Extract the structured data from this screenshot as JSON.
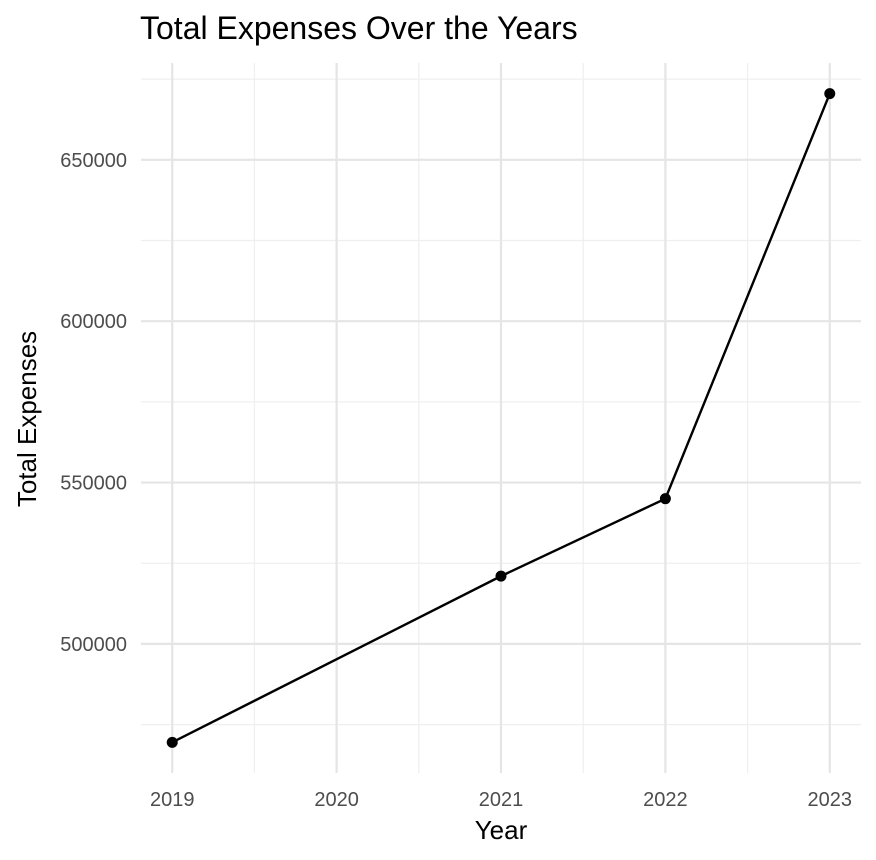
{
  "chart_data": {
    "type": "line",
    "title": "Total Expenses Over the Years",
    "xlabel": "Year",
    "ylabel": "Total Expenses",
    "x": [
      2019,
      2021,
      2022,
      2023
    ],
    "y": [
      469500,
      521000,
      545000,
      670500
    ],
    "x_ticks": [
      "2019",
      "2020",
      "2021",
      "2022",
      "2023"
    ],
    "y_ticks": [
      "500000",
      "550000",
      "600000",
      "650000"
    ],
    "xlim": [
      2018.81,
      2023.19
    ],
    "ylim": [
      460000,
      680000
    ],
    "grid": true,
    "legend": "none",
    "colors": {
      "line": "#000000",
      "grid": "#e5e5e5",
      "tick_text": "#4d4d4d"
    }
  }
}
